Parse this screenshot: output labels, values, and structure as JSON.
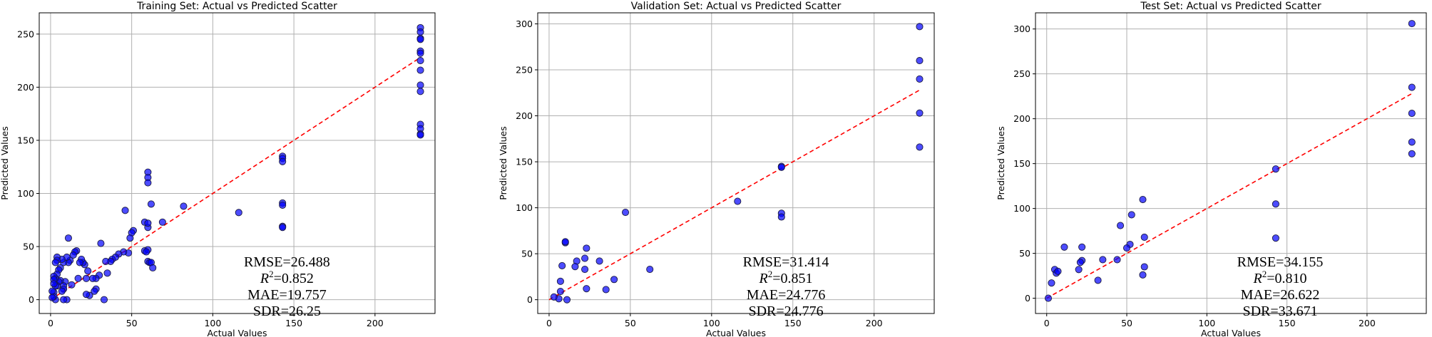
{
  "chart_data": [
    {
      "type": "scatter",
      "title": "Training Set: Actual vs Predicted Scatter",
      "xlabel": "Actual Values",
      "ylabel": "Predicted Values",
      "xlim": [
        -7,
        237
      ],
      "ylim": [
        -13,
        270
      ],
      "xticks": [
        0,
        50,
        100,
        150,
        200
      ],
      "yticks": [
        0,
        50,
        100,
        150,
        200,
        250
      ],
      "grid": true,
      "reference_line": {
        "style": "dashed",
        "color": "#ff0000",
        "from": [
          0,
          0
        ],
        "to": [
          228,
          228
        ]
      },
      "metrics": {
        "rmse": "RMSE=26.488",
        "r2_value": "=0.852",
        "mae": "MAE=19.757",
        "sdr": "SDR=26.25"
      },
      "r2_label": {
        "base": "R",
        "exp": "2"
      },
      "points": [
        [
          228,
          256
        ],
        [
          228,
          252
        ],
        [
          228,
          246
        ],
        [
          228,
          245
        ],
        [
          228,
          234
        ],
        [
          228,
          232
        ],
        [
          228,
          225
        ],
        [
          228,
          216
        ],
        [
          228,
          202
        ],
        [
          228,
          196
        ],
        [
          228,
          165
        ],
        [
          228,
          161
        ],
        [
          228,
          156
        ],
        [
          228,
          155
        ],
        [
          143,
          135
        ],
        [
          143,
          133
        ],
        [
          143,
          130
        ],
        [
          143,
          91
        ],
        [
          143,
          89
        ],
        [
          143,
          69
        ],
        [
          143,
          68
        ],
        [
          116,
          82
        ],
        [
          82,
          88
        ],
        [
          69,
          73
        ],
        [
          62,
          90
        ],
        [
          60,
          120
        ],
        [
          60,
          115
        ],
        [
          60,
          110
        ],
        [
          58,
          73
        ],
        [
          60,
          68
        ],
        [
          60,
          72
        ],
        [
          58,
          46
        ],
        [
          60,
          47
        ],
        [
          59,
          45
        ],
        [
          60,
          36
        ],
        [
          61,
          35
        ],
        [
          62,
          35
        ],
        [
          63,
          30
        ],
        [
          51,
          65
        ],
        [
          50,
          63
        ],
        [
          49,
          58
        ],
        [
          48,
          44
        ],
        [
          46,
          84
        ],
        [
          45,
          45
        ],
        [
          42,
          43
        ],
        [
          40,
          40
        ],
        [
          38,
          38
        ],
        [
          37,
          36
        ],
        [
          35,
          25
        ],
        [
          34,
          36
        ],
        [
          33,
          0
        ],
        [
          31,
          53
        ],
        [
          30,
          23
        ],
        [
          28,
          20
        ],
        [
          28,
          10
        ],
        [
          27,
          8
        ],
        [
          26,
          20
        ],
        [
          24,
          4
        ],
        [
          23,
          27
        ],
        [
          22,
          20
        ],
        [
          22,
          5
        ],
        [
          21,
          33
        ],
        [
          20,
          35
        ],
        [
          19,
          38
        ],
        [
          18,
          35
        ],
        [
          17,
          20
        ],
        [
          16,
          46
        ],
        [
          15,
          45
        ],
        [
          14,
          42
        ],
        [
          13,
          14
        ],
        [
          12,
          37
        ],
        [
          11,
          58
        ],
        [
          11,
          35
        ],
        [
          10,
          40
        ],
        [
          10,
          0
        ],
        [
          9,
          17
        ],
        [
          8,
          35
        ],
        [
          8,
          13
        ],
        [
          8,
          10
        ],
        [
          8,
          0
        ],
        [
          7,
          8
        ],
        [
          7,
          38
        ],
        [
          6,
          30
        ],
        [
          6,
          18
        ],
        [
          5,
          28
        ],
        [
          5,
          17
        ],
        [
          4,
          40
        ],
        [
          4,
          37
        ],
        [
          4,
          24
        ],
        [
          4,
          13
        ],
        [
          3,
          35
        ],
        [
          3,
          20
        ],
        [
          3,
          13
        ],
        [
          3,
          0
        ],
        [
          2,
          22
        ],
        [
          2,
          19
        ],
        [
          2,
          15
        ],
        [
          2,
          7
        ],
        [
          2,
          3
        ],
        [
          1,
          8
        ],
        [
          1,
          2
        ]
      ]
    },
    {
      "type": "scatter",
      "title": "Validation Set: Actual vs Predicted Scatter",
      "xlabel": "Actual Values",
      "ylabel": "Predicted Values",
      "xlim": [
        -7,
        237
      ],
      "ylim": [
        -15,
        312
      ],
      "xticks": [
        0,
        50,
        100,
        150,
        200
      ],
      "yticks": [
        0,
        50,
        100,
        150,
        200,
        250,
        300
      ],
      "grid": true,
      "reference_line": {
        "style": "dashed",
        "color": "#ff0000",
        "from": [
          0,
          0
        ],
        "to": [
          228,
          228
        ]
      },
      "metrics": {
        "rmse": "RMSE=31.414",
        "r2_value": "=0.851",
        "mae": "MAE=24.776",
        "sdr": "SDR=24.776"
      },
      "r2_label": {
        "base": "R",
        "exp": "2"
      },
      "points": [
        [
          228,
          297
        ],
        [
          228,
          260
        ],
        [
          228,
          240
        ],
        [
          228,
          203
        ],
        [
          228,
          166
        ],
        [
          143,
          145
        ],
        [
          143,
          144
        ],
        [
          143,
          94
        ],
        [
          143,
          90
        ],
        [
          116,
          107
        ],
        [
          62,
          33
        ],
        [
          47,
          95
        ],
        [
          40,
          22
        ],
        [
          35,
          11
        ],
        [
          31,
          42
        ],
        [
          23,
          56
        ],
        [
          23,
          12
        ],
        [
          22,
          45
        ],
        [
          22,
          33
        ],
        [
          17,
          42
        ],
        [
          16,
          36
        ],
        [
          11,
          0
        ],
        [
          10,
          62
        ],
        [
          10,
          63
        ],
        [
          8,
          37
        ],
        [
          7,
          9
        ],
        [
          7,
          20
        ],
        [
          6,
          1
        ],
        [
          3,
          3
        ]
      ]
    },
    {
      "type": "scatter",
      "title": "Test Set: Actual vs Predicted Scatter",
      "xlabel": "Actual Values",
      "ylabel": "Predicted Values",
      "xlim": [
        -7,
        237
      ],
      "ylim": [
        -17,
        318
      ],
      "xticks": [
        0,
        50,
        100,
        150,
        200
      ],
      "yticks": [
        0,
        50,
        100,
        150,
        200,
        250,
        300
      ],
      "grid": true,
      "reference_line": {
        "style": "dashed",
        "color": "#ff0000",
        "from": [
          0,
          0
        ],
        "to": [
          228,
          228
        ]
      },
      "metrics": {
        "rmse": "RMSE=34.155",
        "r2_value": "=0.810",
        "mae": "MAE=26.622",
        "sdr": "SDR=33.671"
      },
      "r2_label": {
        "base": "R",
        "exp": "2"
      },
      "points": [
        [
          228,
          306
        ],
        [
          228,
          235
        ],
        [
          228,
          206
        ],
        [
          228,
          174
        ],
        [
          228,
          161
        ],
        [
          143,
          144
        ],
        [
          143,
          105
        ],
        [
          143,
          67
        ],
        [
          60,
          110
        ],
        [
          61,
          68
        ],
        [
          61,
          35
        ],
        [
          60,
          26
        ],
        [
          53,
          93
        ],
        [
          52,
          60
        ],
        [
          50,
          56
        ],
        [
          46,
          81
        ],
        [
          44,
          43
        ],
        [
          35,
          43
        ],
        [
          32,
          20
        ],
        [
          22,
          57
        ],
        [
          22,
          42
        ],
        [
          21,
          40
        ],
        [
          20,
          32
        ],
        [
          11,
          57
        ],
        [
          5,
          32
        ],
        [
          6,
          28
        ],
        [
          7,
          30
        ],
        [
          3,
          17
        ],
        [
          1,
          0
        ]
      ]
    }
  ]
}
